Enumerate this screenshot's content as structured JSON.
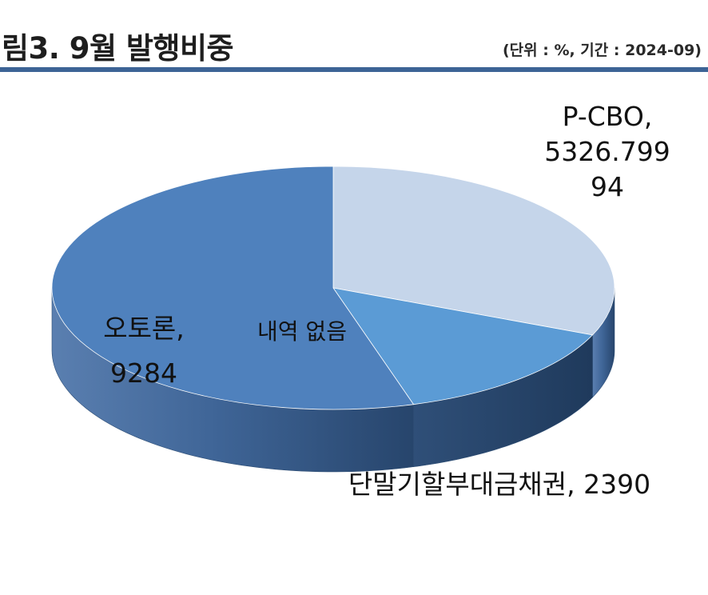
{
  "header": {
    "title": "림3. 9월 발행비중",
    "unit_note": "(단위 : %, 기간 : 2024-09)"
  },
  "chart_data": {
    "type": "pie",
    "style": "3d",
    "categories": [
      "P-CBO",
      "단말기할부대금채권",
      "오토론"
    ],
    "values": [
      5326.79994,
      2390,
      9284
    ],
    "colors": [
      "#c5d5ea",
      "#5b9bd5",
      "#4f81bd"
    ],
    "data_labels": [
      [
        "P-CBO,",
        "5326.799",
        "94"
      ],
      [
        "단말기할부대금채권, 2390"
      ],
      [
        "오토론,",
        "9284"
      ]
    ],
    "annotation": "내역 없음",
    "legend": "none"
  }
}
